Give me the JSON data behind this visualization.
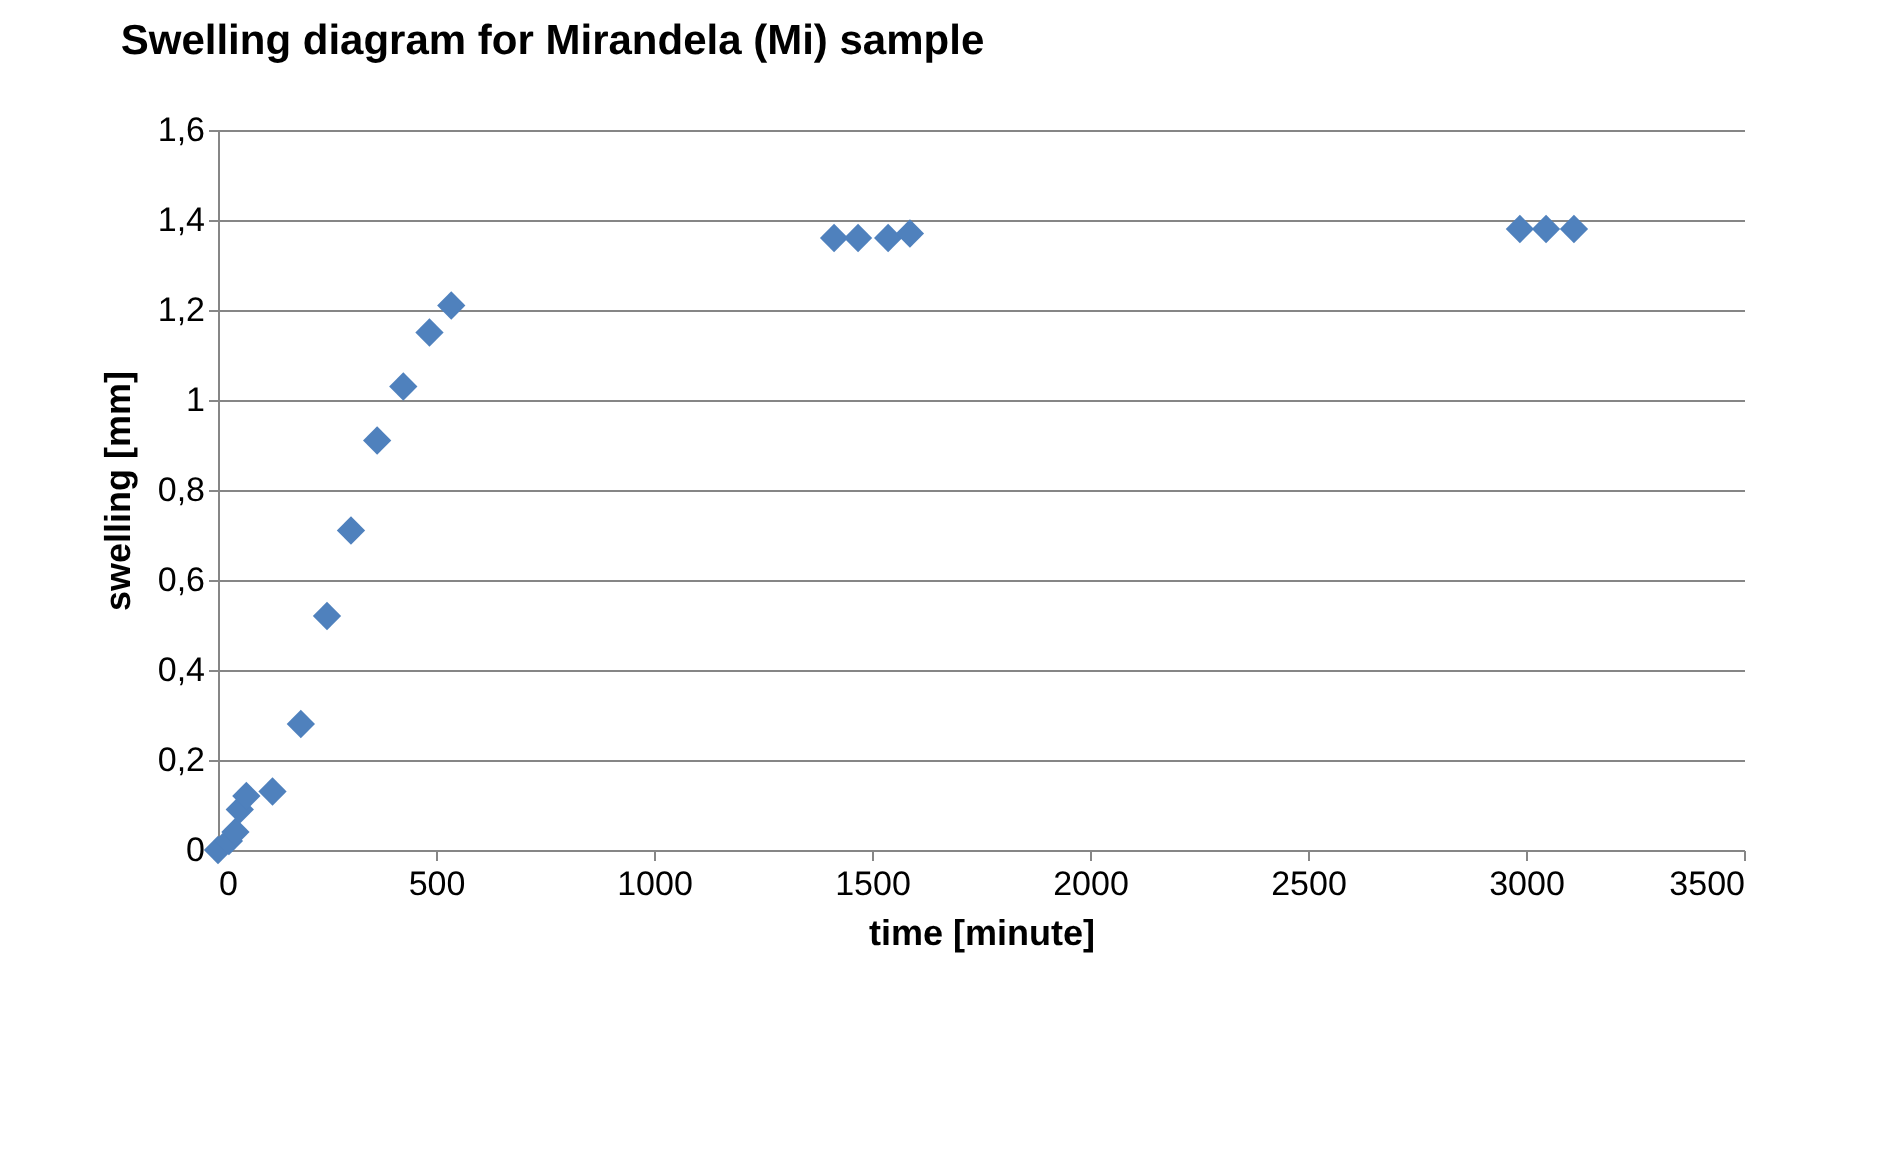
{
  "chart_data": {
    "type": "scatter",
    "title": "Swelling diagram for Mirandela (Mi) sample",
    "xlabel": "time [minute]",
    "ylabel": "swelling [mm]",
    "x": [
      0,
      25,
      40,
      50,
      65,
      125,
      190,
      250,
      305,
      365,
      425,
      485,
      535,
      1413,
      1468,
      1537,
      1587,
      2986,
      3046,
      3110
    ],
    "series": [
      {
        "color": "#4f81bd",
        "values": [
          0,
          0.02,
          0.04,
          0.09,
          0.12,
          0.13,
          0.28,
          0.52,
          0.71,
          0.91,
          1.03,
          1.15,
          1.21,
          1.36,
          1.36,
          1.36,
          1.37,
          1.38,
          1.38,
          1.38
        ]
      }
    ],
    "xlim": [
      0,
      3500
    ],
    "xticks": [
      0,
      500,
      1000,
      1500,
      2000,
      2500,
      3000,
      3500
    ],
    "ylim": [
      0,
      1.6
    ],
    "yticks": [
      0,
      {
        "value": 0.2,
        "label": "0,2"
      },
      {
        "value": 0.4,
        "label": "0,4"
      },
      {
        "value": 0.6,
        "label": "0,6"
      },
      {
        "value": 0.8,
        "label": "0,8"
      },
      1,
      {
        "value": 1.2,
        "label": "1,2"
      },
      {
        "value": 1.4,
        "label": "1,4"
      },
      {
        "value": 1.6,
        "label": "1,6"
      }
    ],
    "grid": "y",
    "marker": "diamond",
    "legend": false
  }
}
